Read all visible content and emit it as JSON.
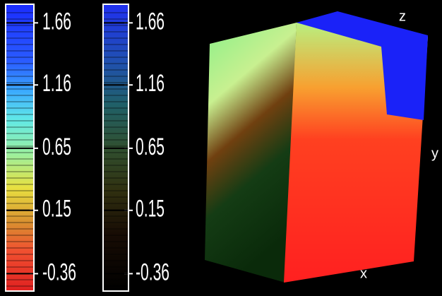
{
  "colorbars": [
    {
      "range": [
        -0.5,
        1.81
      ],
      "ticks": [
        1.66,
        1.16,
        0.65,
        0.15,
        -0.36
      ]
    },
    {
      "range": [
        -0.5,
        1.81
      ],
      "ticks": [
        1.66,
        1.16,
        0.65,
        0.15,
        -0.36
      ]
    }
  ],
  "axes": {
    "x": "x",
    "y": "y",
    "z": "z"
  }
}
